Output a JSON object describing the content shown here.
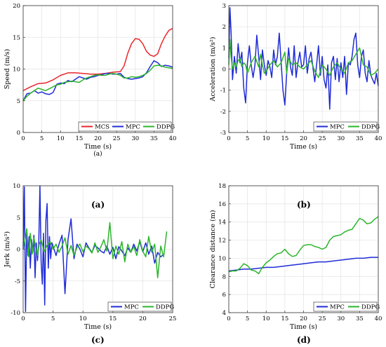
{
  "figure": {
    "panel_labels": [
      "(a)",
      "(b)",
      "(c)",
      "(d)"
    ],
    "inner_caption_a": "(a)"
  },
  "chart_data": [
    {
      "id": "a",
      "type": "line",
      "xlabel": "Time (s)",
      "ylabel": "Speed (m/s)",
      "xlim": [
        0,
        40
      ],
      "ylim": [
        0,
        20
      ],
      "xticks": [
        0,
        5,
        10,
        15,
        20,
        25,
        30,
        35,
        40
      ],
      "yticks": [
        0,
        5,
        10,
        15,
        20
      ],
      "grid": true,
      "legend_position": "bottom-right",
      "series": [
        {
          "name": "MCS",
          "color": "#e8262b",
          "x": [
            0,
            2,
            4,
            6,
            8,
            10,
            12,
            14,
            16,
            18,
            20,
            22,
            24,
            26,
            27,
            28,
            29,
            30,
            31,
            32,
            33,
            34,
            35,
            36,
            37,
            38,
            39,
            40
          ],
          "y": [
            6.6,
            7.2,
            7.7,
            7.8,
            8.3,
            9.0,
            9.4,
            9.4,
            9.3,
            9.2,
            9.2,
            9.3,
            9.5,
            9.6,
            10.5,
            12.5,
            14.0,
            14.8,
            14.7,
            14.0,
            12.8,
            12.2,
            12.0,
            12.4,
            14.0,
            15.2,
            16.1,
            16.4
          ]
        },
        {
          "name": "MPC",
          "color": "#1f2bd6",
          "x": [
            0,
            1,
            2,
            3,
            4,
            5,
            6,
            7,
            8,
            9,
            10,
            11,
            12,
            13,
            14,
            15,
            16,
            17,
            18,
            19,
            20,
            21,
            22,
            23,
            24,
            25,
            26,
            27,
            28,
            29,
            30,
            31,
            32,
            33,
            34,
            35,
            36,
            37,
            38,
            39,
            40
          ],
          "y": [
            5.0,
            6.1,
            6.2,
            6.6,
            6.2,
            6.4,
            6.1,
            6.0,
            6.3,
            7.6,
            7.8,
            7.7,
            8.2,
            8.0,
            8.4,
            8.8,
            8.6,
            8.4,
            8.7,
            8.8,
            9.0,
            9.1,
            9.3,
            9.3,
            9.2,
            9.2,
            9.3,
            8.7,
            8.5,
            8.4,
            8.5,
            8.6,
            8.8,
            9.4,
            10.4,
            11.3,
            11.0,
            10.4,
            10.6,
            10.5,
            10.3
          ]
        },
        {
          "name": "DDPG",
          "color": "#2bb52b",
          "x": [
            0,
            1,
            2,
            3,
            4,
            5,
            6,
            7,
            8,
            9,
            10,
            11,
            12,
            13,
            14,
            15,
            16,
            17,
            18,
            19,
            20,
            21,
            22,
            23,
            24,
            25,
            26,
            27,
            28,
            29,
            30,
            31,
            32,
            33,
            34,
            35,
            36,
            37,
            38,
            39,
            40
          ],
          "y": [
            5.0,
            5.7,
            6.2,
            6.6,
            7.0,
            6.8,
            6.6,
            6.9,
            7.2,
            7.5,
            7.6,
            7.9,
            8.0,
            8.1,
            8.0,
            7.9,
            8.3,
            8.6,
            8.8,
            9.0,
            9.1,
            9.0,
            9.0,
            9.2,
            9.3,
            9.2,
            9.0,
            8.6,
            8.6,
            8.8,
            8.7,
            8.8,
            9.0,
            9.3,
            9.8,
            10.5,
            10.6,
            10.5,
            10.3,
            10.2,
            10.1
          ]
        }
      ]
    },
    {
      "id": "b",
      "type": "line",
      "xlabel": "Time (s)",
      "ylabel": "Acceleration (m/s²)",
      "xlim": [
        0,
        40
      ],
      "ylim": [
        -3,
        3
      ],
      "xticks": [
        0,
        5,
        10,
        15,
        20,
        25,
        30,
        35,
        40
      ],
      "yticks": [
        -3,
        -2,
        -1,
        0,
        1,
        2,
        3
      ],
      "grid": true,
      "legend_position": "bottom-right",
      "series": [
        {
          "name": "MPC",
          "color": "#1f2bd6",
          "x": [
            0,
            0.3,
            0.6,
            1,
            1.5,
            2,
            2.5,
            3,
            3.5,
            4,
            4.5,
            5,
            5.5,
            6,
            6.5,
            7,
            7.5,
            8,
            8.5,
            9,
            9.5,
            10,
            10.5,
            11,
            11.5,
            12,
            12.5,
            13,
            13.5,
            14,
            14.5,
            15,
            15.5,
            16,
            16.5,
            17,
            17.5,
            18,
            18.5,
            19,
            19.5,
            20,
            20.5,
            21,
            21.5,
            22,
            22.5,
            23,
            23.5,
            24,
            24.5,
            25,
            25.5,
            26,
            26.5,
            27,
            27.5,
            28,
            28.5,
            29,
            29.5,
            30,
            30.5,
            31,
            31.5,
            32,
            32.5,
            33,
            33.5,
            34,
            34.5,
            35,
            35.5,
            36,
            36.5,
            37,
            37.5,
            38,
            38.5,
            39,
            39.5,
            40
          ],
          "y": [
            0.5,
            2.9,
            1.8,
            -0.5,
            0.6,
            -0.2,
            1.2,
            0.3,
            0.8,
            -0.9,
            -1.6,
            0.3,
            1.1,
            0.2,
            -0.4,
            0.2,
            1.6,
            0.6,
            -0.5,
            0.9,
            0.2,
            -0.3,
            0.4,
            0.1,
            -0.4,
            0.9,
            0.2,
            0.6,
            1.7,
            0.3,
            -1.0,
            -1.7,
            -0.2,
            1.0,
            0.1,
            -0.3,
            1.1,
            -0.4,
            0.3,
            0.8,
            0.1,
            0.2,
            1.1,
            -0.2,
            0.5,
            0.8,
            0.1,
            -0.6,
            0.2,
            1.1,
            -0.3,
            0.6,
            -0.5,
            -0.9,
            0.2,
            -1.9,
            0.3,
            0.6,
            -0.5,
            0.5,
            -0.6,
            0.3,
            -0.4,
            0.6,
            -1.2,
            0.3,
            0.2,
            0.6,
            1.4,
            1.7,
            0.2,
            -0.4,
            0.6,
            0.9,
            -0.2,
            -0.6,
            0.4,
            -0.3,
            -0.5,
            -0.7,
            -0.2,
            -0.8
          ]
        },
        {
          "name": "DDPG",
          "color": "#2bb52b",
          "x": [
            0,
            0.3,
            0.6,
            1,
            1.5,
            2,
            2.5,
            3,
            3.5,
            4,
            4.5,
            5,
            6,
            7,
            8,
            8.5,
            9,
            9.5,
            10,
            11,
            12,
            13,
            14,
            15,
            15.5,
            16,
            17,
            18,
            19,
            20,
            21,
            22,
            23,
            24,
            25,
            26,
            27,
            28,
            29,
            30,
            31,
            32,
            33,
            34,
            35,
            36,
            37,
            38,
            39,
            40
          ],
          "y": [
            0.2,
            1.4,
            0.6,
            0.0,
            0.3,
            0.1,
            0.4,
            0.5,
            0.1,
            0.3,
            0.2,
            -0.2,
            0.3,
            0.6,
            0.1,
            0.7,
            0.2,
            -0.2,
            -0.1,
            0.2,
            0.4,
            0.1,
            0.3,
            0.8,
            -0.2,
            0.5,
            0.2,
            0.3,
            0.1,
            0.0,
            0.2,
            0.4,
            -0.1,
            -0.4,
            0.2,
            0.0,
            -0.3,
            0.1,
            0.3,
            0.0,
            -0.2,
            0.3,
            0.4,
            0.7,
            1.0,
            0.2,
            0.1,
            -0.3,
            -0.2,
            0.0
          ]
        }
      ]
    },
    {
      "id": "c",
      "type": "line",
      "xlabel": "Time (s)",
      "ylabel": "Jerk (m/s³)",
      "xlim": [
        0,
        25
      ],
      "ylim": [
        -10,
        10
      ],
      "xticks": [
        0,
        5,
        10,
        15,
        20,
        25
      ],
      "yticks": [
        -10,
        -5,
        0,
        5,
        10
      ],
      "grid": true,
      "legend_position": "bottom-right",
      "series": [
        {
          "name": "MPC",
          "color": "#1f2bd6",
          "x": [
            0,
            0.2,
            0.4,
            0.6,
            0.8,
            1,
            1.2,
            1.4,
            1.6,
            1.8,
            2,
            2.2,
            2.4,
            2.6,
            2.8,
            3,
            3.2,
            3.4,
            3.6,
            3.8,
            4,
            4.2,
            4.4,
            4.6,
            4.8,
            5,
            5.5,
            6,
            6.5,
            7,
            7.5,
            8,
            8.5,
            9,
            9.5,
            10,
            10.5,
            11,
            11.5,
            12,
            12.5,
            13,
            13.5,
            14,
            14.5,
            15,
            15.5,
            16,
            16.5,
            17,
            17.5,
            18,
            18.5,
            19,
            19.5,
            20,
            20.5,
            21,
            21.5,
            22,
            22.5,
            23,
            23.5
          ],
          "y": [
            0,
            9.8,
            -9.8,
            3.2,
            -1.0,
            2.0,
            -3.0,
            1.5,
            -0.5,
            2.2,
            -4.5,
            1.0,
            -1.8,
            0.8,
            10.0,
            -2.0,
            -5.5,
            2.5,
            -8.8,
            4.5,
            7.2,
            -3.0,
            2.0,
            -1.5,
            1.0,
            0.5,
            -1.0,
            0.8,
            2.2,
            -7.0,
            1.5,
            4.8,
            -1.5,
            0.8,
            0.0,
            -1.2,
            1.0,
            0.2,
            -0.5,
            0.6,
            0.2,
            -0.3,
            -0.6,
            0.5,
            -0.8,
            0.3,
            -1.5,
            0.4,
            -0.3,
            -1.0,
            0.2,
            -0.5,
            0.8,
            -0.3,
            1.2,
            -0.4,
            1.0,
            -0.8,
            0.5,
            -2.2,
            -0.5,
            -1.2,
            -0.8
          ]
        },
        {
          "name": "DDPG",
          "color": "#2bb52b",
          "x": [
            0,
            0.3,
            0.6,
            0.9,
            1.2,
            1.5,
            1.8,
            2.1,
            2.4,
            2.7,
            3,
            3.5,
            4,
            4.5,
            5,
            5.5,
            6,
            6.5,
            7,
            7.5,
            8,
            8.5,
            9,
            9.5,
            10,
            10.5,
            11,
            11.5,
            12,
            12.5,
            13,
            13.5,
            14,
            14.5,
            15,
            15.5,
            16,
            16.5,
            17,
            17.5,
            18,
            18.5,
            19,
            19.5,
            20,
            20.5,
            21,
            21.5,
            22,
            22.5,
            23,
            23.5,
            24
          ],
          "y": [
            0,
            1.5,
            3.2,
            -1.2,
            2.5,
            -0.8,
            1.8,
            0.3,
            -1.0,
            0.8,
            1.5,
            -0.4,
            0.6,
            1.2,
            0.0,
            0.8,
            -0.5,
            0.5,
            1.8,
            -0.8,
            0.6,
            -1.0,
            0.3,
            0.8,
            -0.4,
            0.5,
            0.1,
            -0.6,
            1.0,
            -0.5,
            0.4,
            1.5,
            -0.3,
            4.2,
            -1.5,
            0.5,
            -0.8,
            1.2,
            -2.0,
            0.8,
            -0.5,
            0.4,
            -1.0,
            1.5,
            -0.3,
            -1.2,
            2.0,
            -0.5,
            0.8,
            -4.5,
            0.5,
            -1.2,
            2.8
          ]
        }
      ]
    },
    {
      "id": "d",
      "type": "line",
      "xlabel": "Time (s)",
      "ylabel": "Clearance distance (m)",
      "xlim": [
        0,
        40
      ],
      "ylim": [
        4,
        18
      ],
      "xticks": [
        0,
        5,
        10,
        15,
        20,
        25,
        30,
        35,
        40
      ],
      "yticks": [
        4,
        6,
        8,
        10,
        12,
        14,
        16,
        18
      ],
      "grid": true,
      "legend_position": "bottom-right",
      "series": [
        {
          "name": "MPC",
          "color": "#1f2bd6",
          "x": [
            0,
            2,
            4,
            6,
            8,
            10,
            12,
            14,
            16,
            18,
            20,
            22,
            24,
            26,
            28,
            30,
            32,
            34,
            36,
            38,
            40
          ],
          "y": [
            8.6,
            8.7,
            8.8,
            8.8,
            8.9,
            9.0,
            9.0,
            9.1,
            9.2,
            9.3,
            9.4,
            9.5,
            9.6,
            9.6,
            9.7,
            9.8,
            9.9,
            10.0,
            10.0,
            10.1,
            10.1
          ]
        },
        {
          "name": "DDPG",
          "color": "#2bb52b",
          "x": [
            0,
            1,
            2,
            3,
            4,
            5,
            6,
            7,
            8,
            9,
            10,
            11,
            12,
            13,
            14,
            15,
            16,
            17,
            18,
            19,
            20,
            21,
            22,
            23,
            24,
            25,
            26,
            27,
            28,
            29,
            30,
            31,
            32,
            33,
            34,
            35,
            36,
            37,
            38,
            39,
            40
          ],
          "y": [
            8.5,
            8.6,
            8.6,
            8.9,
            9.4,
            9.2,
            8.7,
            8.6,
            8.3,
            9.0,
            9.5,
            9.8,
            10.2,
            10.5,
            10.6,
            11.0,
            10.5,
            10.2,
            10.3,
            10.9,
            11.4,
            11.5,
            11.5,
            11.3,
            11.2,
            11.0,
            11.2,
            12.0,
            12.4,
            12.5,
            12.6,
            12.9,
            13.1,
            13.2,
            13.8,
            14.4,
            14.2,
            13.8,
            13.9,
            14.3,
            14.6
          ]
        }
      ]
    }
  ]
}
